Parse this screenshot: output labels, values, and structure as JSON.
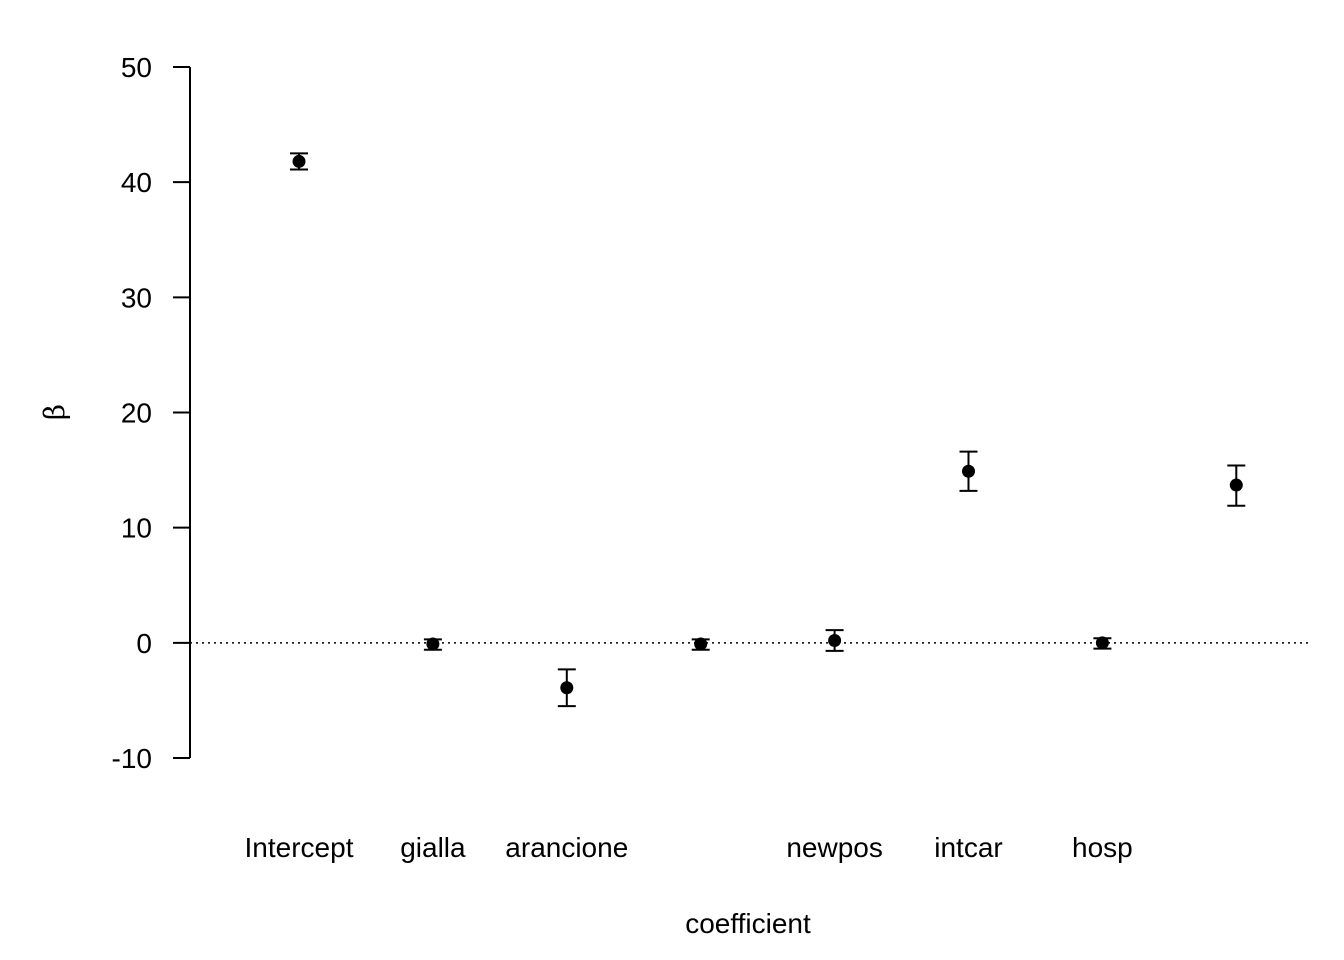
{
  "chart_data": {
    "type": "scatter",
    "xlabel": "coefficient",
    "ylabel": "β",
    "ylim": [
      -10,
      50
    ],
    "yticks": [
      -10,
      0,
      10,
      20,
      30,
      40,
      50
    ],
    "reference_line_y": 0,
    "points": [
      {
        "label": "Intercept",
        "y": 41.8,
        "lo": 41.1,
        "hi": 42.5
      },
      {
        "label": "gialla",
        "y": -0.1,
        "lo": -0.6,
        "hi": 0.3
      },
      {
        "label": "arancione",
        "y": -3.9,
        "lo": -5.5,
        "hi": -2.3
      },
      {
        "label": "",
        "y": -0.1,
        "lo": -0.6,
        "hi": 0.3
      },
      {
        "label": "newpos",
        "y": 0.2,
        "lo": -0.7,
        "hi": 1.1
      },
      {
        "label": "intcar",
        "y": 14.9,
        "lo": 13.2,
        "hi": 16.6
      },
      {
        "label": "hosp",
        "y": 0.0,
        "lo": -0.5,
        "hi": 0.4
      },
      {
        "label": "",
        "y": 13.7,
        "lo": 11.9,
        "hi": 15.4
      }
    ]
  }
}
